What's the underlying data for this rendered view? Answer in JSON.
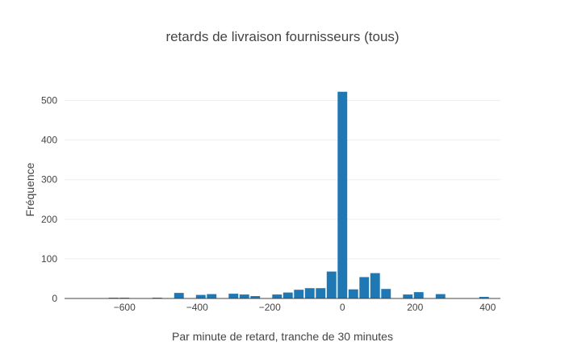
{
  "chart_data": {
    "type": "bar",
    "title": "retards de livraison fournisseurs (tous)",
    "xlabel": "Par minute de retard, tranche de 30 minutes",
    "ylabel": "Fréquence",
    "xlim": [
      -765,
      435
    ],
    "ylim": [
      0,
      550
    ],
    "bin_width": 30,
    "x_ticks": [
      -600,
      -400,
      -200,
      0,
      200,
      400
    ],
    "x_tick_labels": [
      "−600",
      "−400",
      "−200",
      "0",
      "200",
      "400"
    ],
    "y_ticks": [
      0,
      100,
      200,
      300,
      400,
      500
    ],
    "y_tick_labels": [
      "0",
      "100",
      "200",
      "300",
      "400",
      "500"
    ],
    "grid": true,
    "color": "#1f77b4",
    "x": [
      -750,
      -720,
      -690,
      -660,
      -630,
      -600,
      -570,
      -540,
      -510,
      -480,
      -450,
      -420,
      -390,
      -360,
      -330,
      -300,
      -270,
      -240,
      -210,
      -180,
      -150,
      -120,
      -90,
      -60,
      -30,
      0,
      30,
      60,
      90,
      120,
      150,
      180,
      210,
      240,
      270,
      300,
      330,
      360,
      390,
      420
    ],
    "values": [
      1,
      1,
      1,
      1,
      2,
      2,
      1,
      1,
      2,
      1,
      14,
      1,
      9,
      11,
      1,
      12,
      10,
      6,
      1,
      10,
      15,
      22,
      26,
      26,
      68,
      522,
      23,
      54,
      64,
      24,
      1,
      10,
      16,
      1,
      11,
      1,
      1,
      1,
      4,
      1
    ]
  }
}
